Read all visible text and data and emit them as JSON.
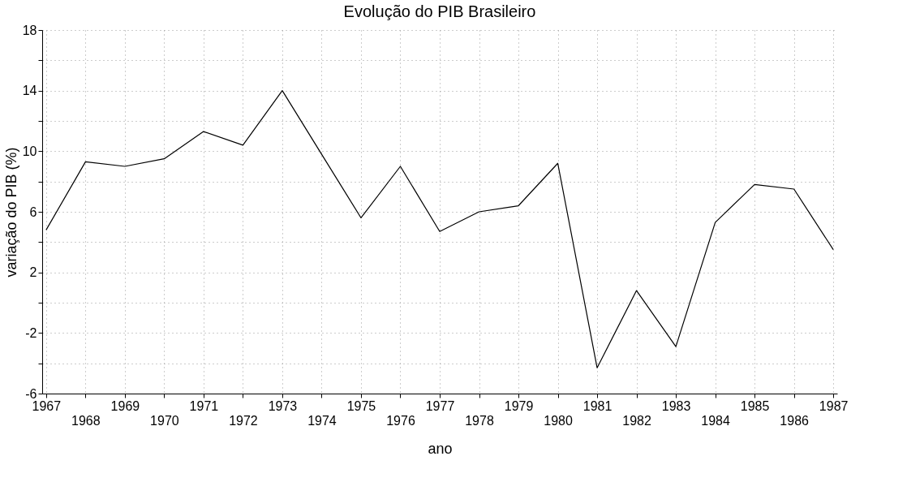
{
  "chart_data": {
    "type": "line",
    "title": "Evolução do PIB Brasileiro",
    "xlabel": "ano",
    "ylabel": "variação do PIB (%)",
    "categories": [
      "1967",
      "1968",
      "1969",
      "1970",
      "1971",
      "1972",
      "1973",
      "1974",
      "1975",
      "1976",
      "1977",
      "1978",
      "1979",
      "1980",
      "1981",
      "1982",
      "1983",
      "1984",
      "1985",
      "1986",
      "1987"
    ],
    "series": [
      {
        "color": "#000000",
        "values": [
          4.8,
          9.3,
          9.0,
          9.5,
          11.3,
          10.4,
          14.0,
          9.8,
          5.6,
          9.0,
          4.7,
          6.0,
          6.4,
          9.2,
          -4.3,
          0.8,
          -2.9,
          5.3,
          7.8,
          7.5,
          3.5
        ]
      }
    ],
    "ylim": [
      -6,
      18
    ],
    "yticks": [
      -6,
      {
        "value": -4,
        "label": null
      },
      -2,
      {
        "value": 0,
        "label": null
      },
      2,
      {
        "value": 4,
        "label": null
      },
      6,
      {
        "value": 8,
        "label": null
      },
      10,
      {
        "value": 12,
        "label": null
      },
      14,
      {
        "value": 16,
        "label": null
      },
      18
    ],
    "grid": true,
    "marker": "none",
    "line_style": "solid"
  }
}
